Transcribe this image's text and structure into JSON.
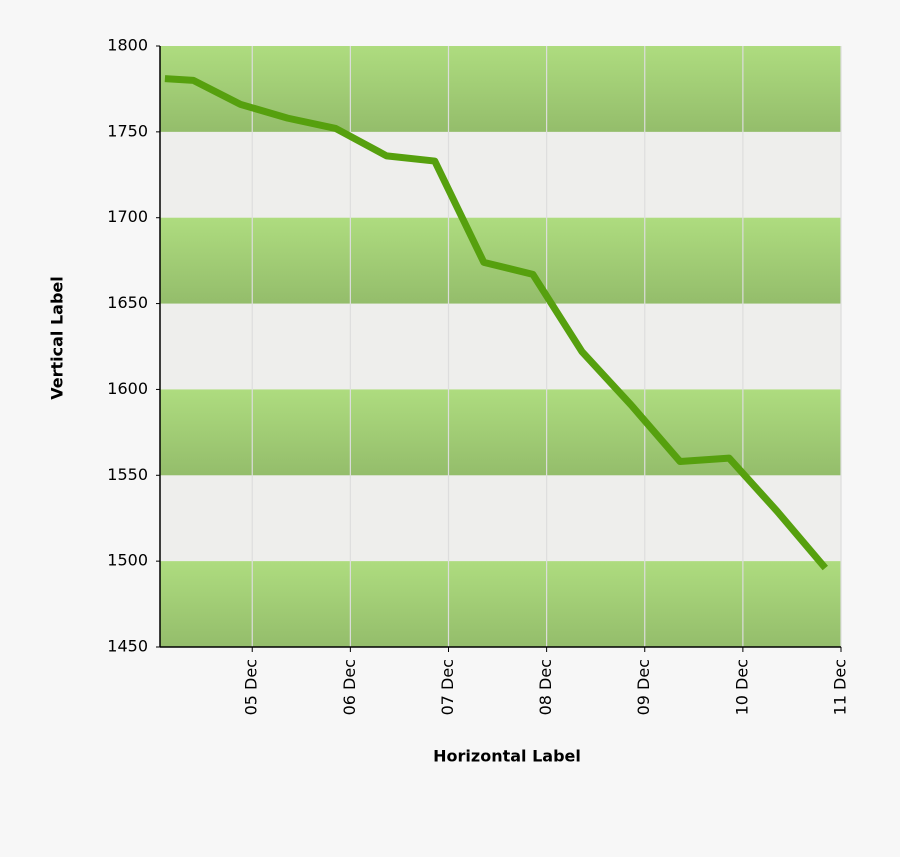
{
  "chart_data": {
    "type": "line",
    "x_label": "Horizontal Label",
    "y_label": "Vertical Label",
    "x": [
      4.11,
      4.4,
      4.88,
      5.36,
      5.85,
      6.37,
      6.86,
      7.36,
      7.86,
      8.36,
      8.86,
      9.36,
      9.86,
      10.35,
      10.84
    ],
    "series": [
      {
        "color": "#56a00e",
        "values": [
          1781,
          1780,
          1766,
          1758,
          1752,
          1736,
          1733,
          1674,
          1667,
          1622,
          1591,
          1558,
          1560,
          1529,
          1496
        ]
      }
    ],
    "xlim": [
      4.06,
      11
    ],
    "xticks": [
      {
        "value": 5,
        "label": "05 Dec"
      },
      {
        "value": 6,
        "label": "06 Dec"
      },
      {
        "value": 7,
        "label": "07 Dec"
      },
      {
        "value": 8,
        "label": "08 Dec"
      },
      {
        "value": 9,
        "label": "09 Dec"
      },
      {
        "value": 10,
        "label": "10 Dec"
      },
      {
        "value": 11,
        "label": "11 Dec"
      }
    ],
    "ylim": [
      1450,
      1800
    ],
    "yticks": [
      1450,
      1500,
      1550,
      1600,
      1650,
      1700,
      1750,
      1800
    ],
    "grid": true
  }
}
